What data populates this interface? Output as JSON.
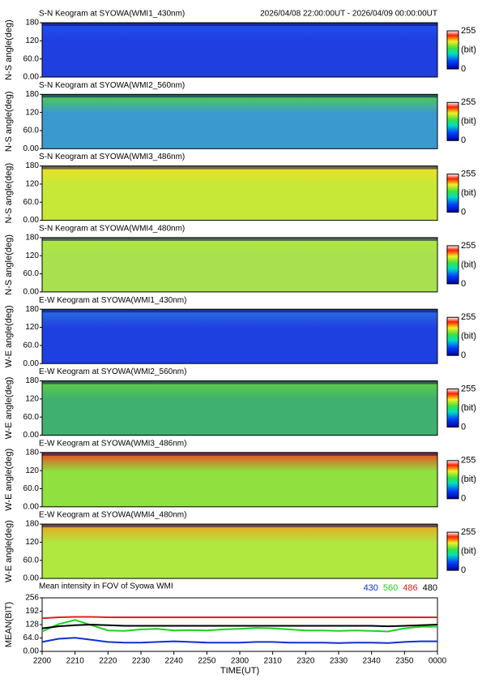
{
  "chart_data": [
    {
      "type": "heatmap",
      "title": "S-N Keogram at SYOWA(WMI1_430nm)",
      "subtitle": "2026/04/08 22:00:00UT - 2026/04/09 00:00:00UT",
      "ylabel": "N-S angle(deg)",
      "ylim": [
        0,
        180
      ],
      "yticks": [
        180,
        120,
        {
          "value": 60,
          "label": "60.0"
        },
        {
          "value": 0,
          "label": "0.00"
        }
      ],
      "color": "#1f3fe0",
      "top_color": "#2050f0",
      "colorbar_ticks": [
        0,
        255
      ],
      "colorbar_label": "(bit)"
    },
    {
      "type": "heatmap",
      "title": "S-N Keogram at SYOWA(WMI2_560nm)",
      "ylabel": "N-S angle(deg)",
      "ylim": [
        0,
        180
      ],
      "yticks": [
        180,
        120,
        {
          "value": 60,
          "label": "60.0"
        },
        {
          "value": 0,
          "label": "0.00"
        }
      ],
      "color": "#3a9ad0",
      "top_color": "#50d040",
      "colorbar_ticks": [
        0,
        255
      ],
      "colorbar_label": "(bit)"
    },
    {
      "type": "heatmap",
      "title": "S-N Keogram at SYOWA(WMI3_486nm)",
      "ylabel": "N-S angle(deg)",
      "ylim": [
        0,
        180
      ],
      "yticks": [
        180,
        120,
        {
          "value": 60,
          "label": "60.0"
        },
        {
          "value": 0,
          "label": "0.00"
        }
      ],
      "color": "#c8e838",
      "top_color": "#f0e020",
      "colorbar_ticks": [
        0,
        255
      ],
      "colorbar_label": "(bit)"
    },
    {
      "type": "heatmap",
      "title": "S-N Keogram at SYOWA(WMI4_480nm)",
      "ylabel": "N-S angle(deg)",
      "ylim": [
        0,
        180
      ],
      "yticks": [
        180,
        120,
        {
          "value": 60,
          "label": "60.0"
        },
        {
          "value": 0,
          "label": "0.00"
        }
      ],
      "color": "#a8e050",
      "top_color": "#b0e840",
      "colorbar_ticks": [
        0,
        255
      ],
      "colorbar_label": "(bit)"
    },
    {
      "type": "heatmap",
      "title": "E-W Keogram at SYOWA(WMI1_430nm)",
      "ylabel": "W-E angle(deg)",
      "ylim": [
        0,
        180
      ],
      "yticks": [
        180,
        120,
        {
          "value": 60,
          "label": "60.0"
        },
        {
          "value": 0,
          "label": "0.00"
        }
      ],
      "color": "#1f40e0",
      "top_color": "#2a70e0",
      "colorbar_ticks": [
        0,
        255
      ],
      "colorbar_label": "(bit)"
    },
    {
      "type": "heatmap",
      "title": "E-W Keogram at SYOWA(WMI2_560nm)",
      "ylabel": "W-E angle(deg)",
      "ylim": [
        0,
        180
      ],
      "yticks": [
        180,
        120,
        {
          "value": 60,
          "label": "60.0"
        },
        {
          "value": 0,
          "label": "0.00"
        }
      ],
      "color": "#40b070",
      "top_color": "#60d040",
      "colorbar_ticks": [
        0,
        255
      ],
      "colorbar_label": "(bit)"
    },
    {
      "type": "heatmap",
      "title": "E-W Keogram at SYOWA(WMI3_486nm)",
      "ylabel": "W-E angle(deg)",
      "ylim": [
        0,
        180
      ],
      "yticks": [
        180,
        120,
        {
          "value": 60,
          "label": "60.0"
        },
        {
          "value": 0,
          "label": "0.00"
        }
      ],
      "color": "#90e040",
      "top_color": "#f04020",
      "colorbar_ticks": [
        0,
        255
      ],
      "colorbar_label": "(bit)"
    },
    {
      "type": "heatmap",
      "title": "E-W Keogram at SYOWA(WMI4_480nm)",
      "ylabel": "W-E angle(deg)",
      "ylim": [
        0,
        180
      ],
      "yticks": [
        180,
        120,
        {
          "value": 60,
          "label": "60.0"
        },
        {
          "value": 0,
          "label": "0.00"
        }
      ],
      "color": "#b0e840",
      "top_color": "#f0a020",
      "colorbar_ticks": [
        0,
        255
      ],
      "colorbar_label": "(bit)"
    },
    {
      "type": "line",
      "title": "Mean intensity in FOV of Syowa WMI",
      "ylabel": "MEAN(BIT)",
      "xlabel": "TIME(UT)",
      "x": [
        0,
        5,
        10,
        15,
        20,
        25,
        30,
        35,
        40,
        45,
        50,
        55,
        60,
        65,
        70,
        75,
        80,
        85,
        90,
        95,
        100,
        105,
        110,
        115,
        120
      ],
      "xlim": [
        0,
        120
      ],
      "xticks": [
        {
          "value": 0,
          "label": "2200"
        },
        {
          "value": 10,
          "label": "2210"
        },
        {
          "value": 20,
          "label": "2220"
        },
        {
          "value": 30,
          "label": "2230"
        },
        {
          "value": 40,
          "label": "2240"
        },
        {
          "value": 50,
          "label": "2250"
        },
        {
          "value": 60,
          "label": "2300"
        },
        {
          "value": 70,
          "label": "2310"
        },
        {
          "value": 80,
          "label": "2320"
        },
        {
          "value": 90,
          "label": "2330"
        },
        {
          "value": 100,
          "label": "2340"
        },
        {
          "value": 110,
          "label": "2350"
        },
        {
          "value": 120,
          "label": "0000"
        }
      ],
      "ylim": [
        0,
        256
      ],
      "yticks": [
        256,
        192,
        128,
        {
          "value": 64,
          "label": "64.0"
        },
        {
          "value": 0,
          "label": "0.00"
        }
      ],
      "series": [
        {
          "name": "430",
          "color": "#1030d0",
          "values": [
            45,
            60,
            65,
            55,
            45,
            42,
            42,
            45,
            48,
            45,
            42,
            42,
            42,
            45,
            45,
            42,
            42,
            42,
            40,
            42,
            42,
            40,
            45,
            48,
            48
          ]
        },
        {
          "name": "560",
          "color": "#20d020",
          "values": [
            95,
            130,
            150,
            125,
            100,
            98,
            105,
            108,
            100,
            102,
            100,
            105,
            108,
            112,
            110,
            105,
            100,
            100,
            98,
            100,
            98,
            95,
            110,
            118,
            118
          ]
        },
        {
          "name": "486",
          "color": "#e02020",
          "values": [
            158,
            163,
            165,
            165,
            163,
            163,
            163,
            163,
            163,
            163,
            163,
            163,
            163,
            163,
            163,
            163,
            163,
            163,
            163,
            163,
            163,
            163,
            163,
            163,
            163
          ]
        },
        {
          "name": "480",
          "color": "#000000",
          "values": [
            110,
            120,
            125,
            128,
            125,
            122,
            122,
            122,
            122,
            122,
            122,
            122,
            122,
            122,
            122,
            122,
            122,
            122,
            122,
            122,
            122,
            120,
            122,
            125,
            128
          ]
        }
      ]
    }
  ]
}
